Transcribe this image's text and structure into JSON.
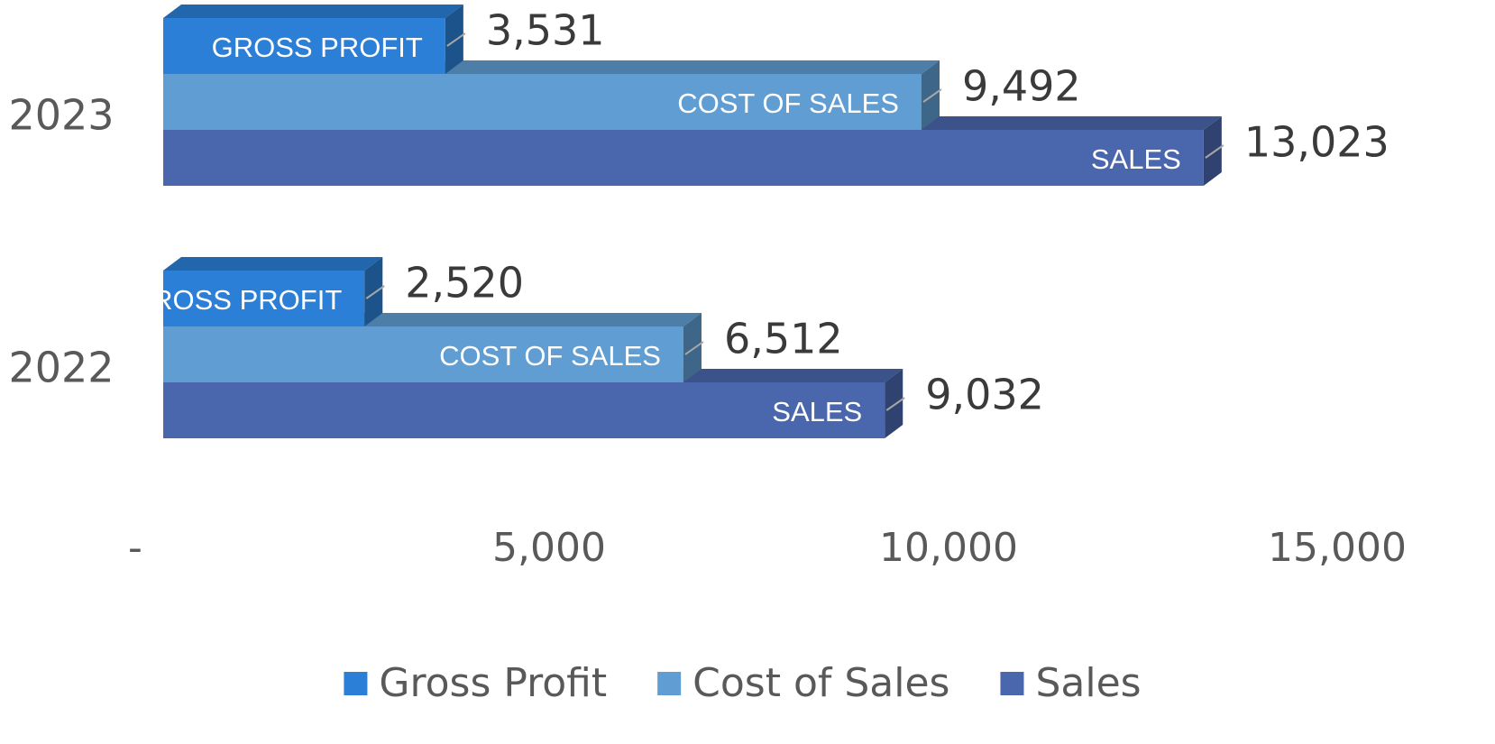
{
  "chart_data": {
    "type": "bar3d_horizontal",
    "categories": [
      "2022",
      "2023"
    ],
    "series": [
      {
        "name": "Gross Profit",
        "bar_label": "GROSS PROFIT",
        "color": "#2b7fd6",
        "values": [
          2520,
          3531
        ],
        "value_labels": [
          "2,520",
          "3,531"
        ]
      },
      {
        "name": "Cost of Sales",
        "bar_label": "COST OF SALES",
        "color": "#5f9dd2",
        "values": [
          6512,
          9492
        ],
        "value_labels": [
          "6,512",
          "9,492"
        ]
      },
      {
        "name": "Sales",
        "bar_label": "SALES",
        "color": "#4a66ad",
        "values": [
          9032,
          13023
        ],
        "value_labels": [
          "9,032",
          "13,023"
        ]
      }
    ],
    "xlim": [
      0,
      15000
    ],
    "xticks": [
      {
        "value": 0,
        "label": "-"
      },
      {
        "value": 5000,
        "label": "5,000"
      },
      {
        "value": 10000,
        "label": "10,000"
      },
      {
        "value": 15000,
        "label": "15,000"
      }
    ],
    "legend": "bottom"
  }
}
